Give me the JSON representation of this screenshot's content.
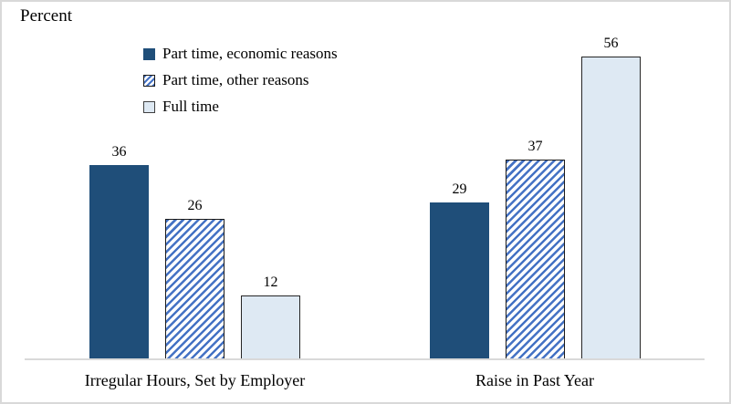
{
  "chart_data": {
    "type": "bar",
    "title": "Percent",
    "categories": [
      "Irregular Hours, Set by Employer",
      "Raise in Past Year"
    ],
    "series": [
      {
        "name": "Part time, economic reasons",
        "values": [
          36,
          29
        ],
        "style": "solid-dark-blue"
      },
      {
        "name": "Part time, other reasons",
        "values": [
          26,
          37
        ],
        "style": "blue-diagonal-hatch"
      },
      {
        "name": "Full time",
        "values": [
          12,
          56
        ],
        "style": "light-blue"
      }
    ],
    "ylabel": "Percent",
    "ylim": [
      0,
      60
    ],
    "grid": false,
    "legend_position": "top-left-inside",
    "value_labels": true
  },
  "colors": {
    "series_dark_blue": "#1f4e79",
    "hatch_stripe_blue": "#4472c4",
    "series_light_blue": "#dee9f3",
    "bar_outline": "#1a1a1a",
    "axis_line": "#d9d9d9",
    "frame_border": "#d9d9d9",
    "text": "#000000"
  }
}
